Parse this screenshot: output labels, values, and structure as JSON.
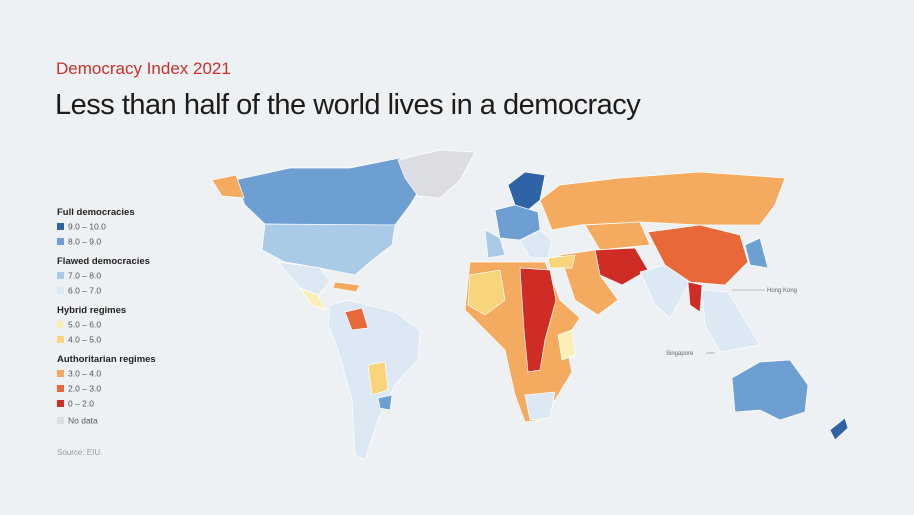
{
  "header": {
    "kicker": "Democracy Index 2021",
    "title": "Less than half of the world lives in a democracy"
  },
  "legend": {
    "groups": [
      {
        "name": "Full democracies",
        "items": [
          {
            "label": "9.0 – 10.0",
            "color": "#2f63a6"
          },
          {
            "label": "8.0 – 9.0",
            "color": "#6e9fd2"
          }
        ]
      },
      {
        "name": "Flawed democracies",
        "items": [
          {
            "label": "7.0 – 8.0",
            "color": "#aacbe8"
          },
          {
            "label": "6.0 – 7.0",
            "color": "#dce9f5"
          }
        ]
      },
      {
        "name": "Hybrid regimes",
        "items": [
          {
            "label": "5.0 – 6.0",
            "color": "#fbefb8"
          },
          {
            "label": "4.0 – 5.0",
            "color": "#f8d57a"
          }
        ]
      },
      {
        "name": "Authoritarian regimes",
        "items": [
          {
            "label": "3.0 – 4.0",
            "color": "#f4ab5f"
          },
          {
            "label": "2.0 – 3.0",
            "color": "#e9683a"
          },
          {
            "label": "0 – 2.0",
            "color": "#cf2c25"
          }
        ]
      }
    ],
    "no_data": {
      "label": "No data",
      "color": "#dcdce3"
    }
  },
  "source": "Source: EIU.",
  "map_labels": [
    "Hong Kong",
    "Singapore"
  ]
}
